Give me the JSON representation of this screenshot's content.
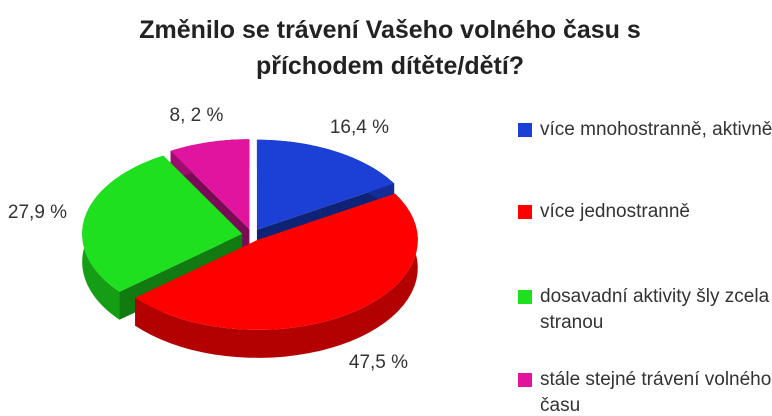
{
  "chart_data": {
    "type": "pie",
    "title": "Změnilo se trávení Vašeho volného času s příchodem dítěte/dětí?",
    "categories": [
      "více mnohostranně, aktivněji",
      "více jednostranně",
      "dosavadní aktivity šly zcela stranou",
      "stále stejné trávení volného času"
    ],
    "values": [
      16.4,
      47.5,
      27.9,
      8.2
    ],
    "value_labels": [
      "16,4 %",
      "47,5 %",
      "27,9 %",
      "8, 2 %"
    ],
    "colors": [
      "#1c3fd6",
      "#ff0000",
      "#1ee01e",
      "#e0149e"
    ],
    "legend": "right"
  }
}
